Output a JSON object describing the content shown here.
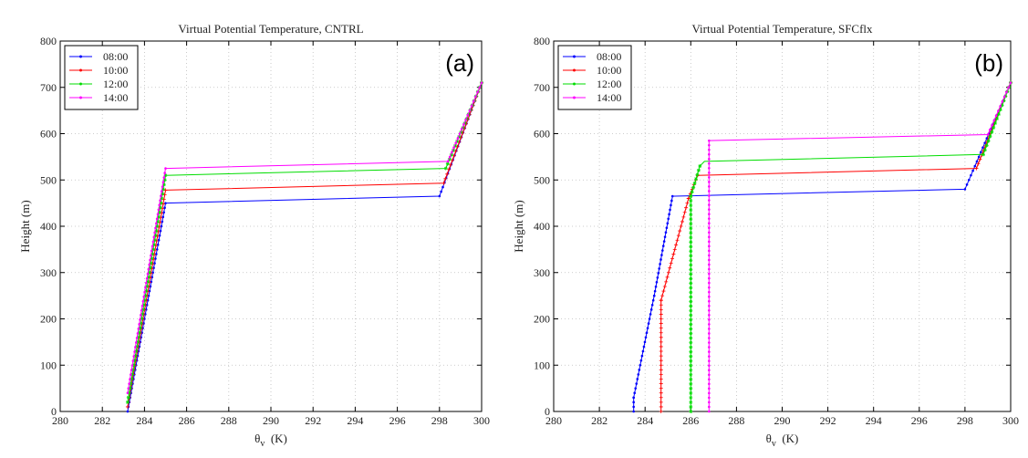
{
  "chart_data": [
    {
      "type": "line",
      "title": "Virtual Potential Temperature, CNTRL",
      "panel_label": "(a)",
      "xlabel_main": "θ",
      "xlabel_sub": "v",
      "xlabel_unit": "(K)",
      "ylabel": "Height (m)",
      "xlim": [
        280,
        300
      ],
      "ylim": [
        0,
        800
      ],
      "xticks": [
        280,
        282,
        284,
        286,
        288,
        290,
        292,
        294,
        296,
        298,
        300
      ],
      "yticks": [
        0,
        100,
        200,
        300,
        400,
        500,
        600,
        700,
        800
      ],
      "grid": true,
      "legend_position": "top-left",
      "series": [
        {
          "name": "08:00",
          "color": "#0000ff",
          "marker": "dot",
          "x": [
            283.2,
            285.0,
            298.0,
            300.0
          ],
          "y": [
            0,
            450,
            465,
            710
          ]
        },
        {
          "name": "10:00",
          "color": "#ff0000",
          "marker": "plus",
          "x": [
            283.2,
            285.0,
            298.2,
            300.0
          ],
          "y": [
            10,
            478,
            493,
            710
          ]
        },
        {
          "name": "12:00",
          "color": "#00dd00",
          "marker": "star",
          "x": [
            283.2,
            285.0,
            298.3,
            300.0
          ],
          "y": [
            20,
            510,
            525,
            710
          ]
        },
        {
          "name": "14:00",
          "color": "#ff00ff",
          "marker": "dot",
          "x": [
            283.2,
            285.0,
            298.4,
            300.0
          ],
          "y": [
            40,
            525,
            540,
            710
          ]
        }
      ]
    },
    {
      "type": "line",
      "title": "Virtual Potential Temperature, SFCflx",
      "panel_label": "(b)",
      "xlabel_main": "θ",
      "xlabel_sub": "v",
      "xlabel_unit": "(K)",
      "ylabel": "Height (m)",
      "xlim": [
        280,
        300
      ],
      "ylim": [
        0,
        800
      ],
      "xticks": [
        280,
        282,
        284,
        286,
        288,
        290,
        292,
        294,
        296,
        298,
        300
      ],
      "yticks": [
        0,
        100,
        200,
        300,
        400,
        500,
        600,
        700,
        800
      ],
      "grid": true,
      "legend_position": "top-left",
      "series": [
        {
          "name": "08:00",
          "color": "#0000ff",
          "marker": "dot",
          "x": [
            283.5,
            283.5,
            284.4,
            285.2,
            285.3,
            298.0,
            300.0
          ],
          "y": [
            0,
            30,
            250,
            465,
            465,
            480,
            710
          ]
        },
        {
          "name": "10:00",
          "color": "#ff0000",
          "marker": "plus",
          "x": [
            284.7,
            284.7,
            285.9,
            286.3,
            298.5,
            300.0
          ],
          "y": [
            0,
            240,
            460,
            510,
            525,
            710
          ]
        },
        {
          "name": "12:00",
          "color": "#00dd00",
          "marker": "star",
          "x": [
            286.0,
            286.0,
            286.4,
            286.6,
            298.8,
            300.0
          ],
          "y": [
            0,
            465,
            530,
            540,
            555,
            710
          ]
        },
        {
          "name": "14:00",
          "color": "#ff00ff",
          "marker": "dot",
          "x": [
            286.8,
            286.8,
            299.0,
            300.0
          ],
          "y": [
            0,
            585,
            598,
            710
          ]
        }
      ]
    }
  ]
}
